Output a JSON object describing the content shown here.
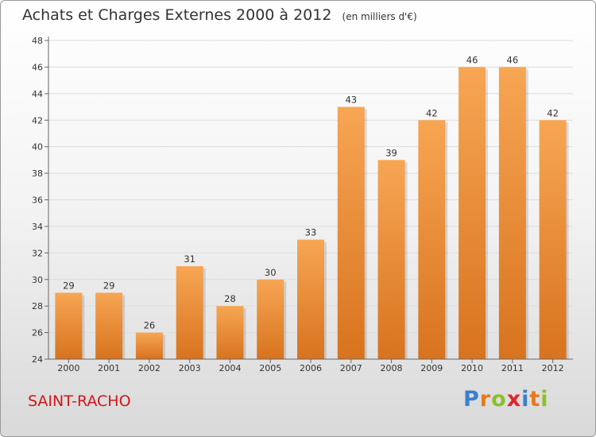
{
  "header": {
    "title": "Achats et Charges Externes 2000 à 2012",
    "subtitle": "(en milliers d'€)"
  },
  "footer": {
    "commune": "SAINT-RACHO",
    "brand": "Proxiti",
    "brand_letters": [
      {
        "char": "P",
        "color": "#3a7fd0"
      },
      {
        "char": "r",
        "color": "#e8781e"
      },
      {
        "char": "o",
        "color": "#8bbf2e"
      },
      {
        "char": "x",
        "color": "#e02530"
      },
      {
        "char": "i",
        "color": "#3a7fd0"
      },
      {
        "char": "t",
        "color": "#e8781e"
      },
      {
        "char": "i",
        "color": "#8bbf2e"
      }
    ]
  },
  "colors": {
    "bar_top": "#f7a654",
    "bar_bottom": "#d8731e",
    "axis": "#666666",
    "grid": "#dddddd",
    "commune": "#d1161a"
  },
  "chart_data": {
    "type": "bar",
    "title": "Achats et Charges Externes 2000 à 2012",
    "subtitle": "(en milliers d'€)",
    "xlabel": "",
    "ylabel": "",
    "categories": [
      "2000",
      "2001",
      "2002",
      "2003",
      "2004",
      "2005",
      "2006",
      "2007",
      "2008",
      "2009",
      "2010",
      "2011",
      "2012"
    ],
    "values": [
      29,
      29,
      26,
      31,
      28,
      30,
      33,
      43,
      39,
      42,
      46,
      46,
      42
    ],
    "data_labels": [
      "29",
      "29",
      "26",
      "31",
      "28",
      "30",
      "33",
      "43",
      "39",
      "42",
      "46",
      "46",
      "42"
    ],
    "ylim": [
      24,
      48
    ],
    "yticks": [
      24,
      26,
      28,
      30,
      32,
      34,
      36,
      38,
      40,
      42,
      44,
      46,
      48
    ],
    "ytick_labels": [
      "24",
      "26",
      "28",
      "30",
      "32",
      "34",
      "36",
      "38",
      "40",
      "42",
      "44",
      "46",
      "48"
    ],
    "grid": true,
    "legend": "none"
  }
}
